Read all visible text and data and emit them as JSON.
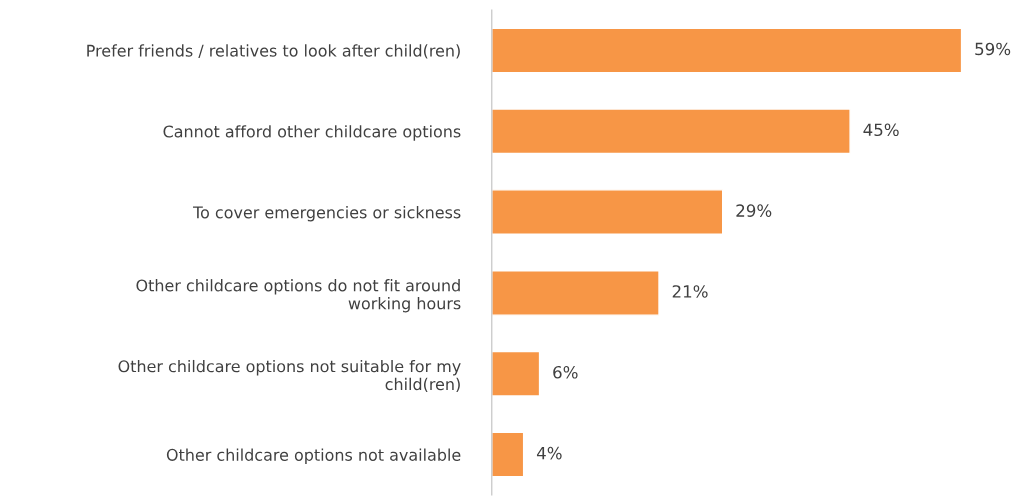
{
  "chart_data": {
    "type": "bar",
    "orientation": "horizontal",
    "categories": [
      "Prefer friends / relatives to look after child(ren)",
      "Cannot afford other childcare options",
      "To cover emergencies or sickness",
      "Other childcare options do not fit around\nworking hours",
      "Other childcare options not suitable for my\nchild(ren)",
      "Other childcare options not available"
    ],
    "values": [
      59,
      45,
      29,
      21,
      6,
      4
    ],
    "value_labels": [
      "59%",
      "45%",
      "29%",
      "21%",
      "6%",
      "4%"
    ],
    "color": "#f79646",
    "grid": false,
    "legend": false,
    "tick_labels": "y"
  }
}
